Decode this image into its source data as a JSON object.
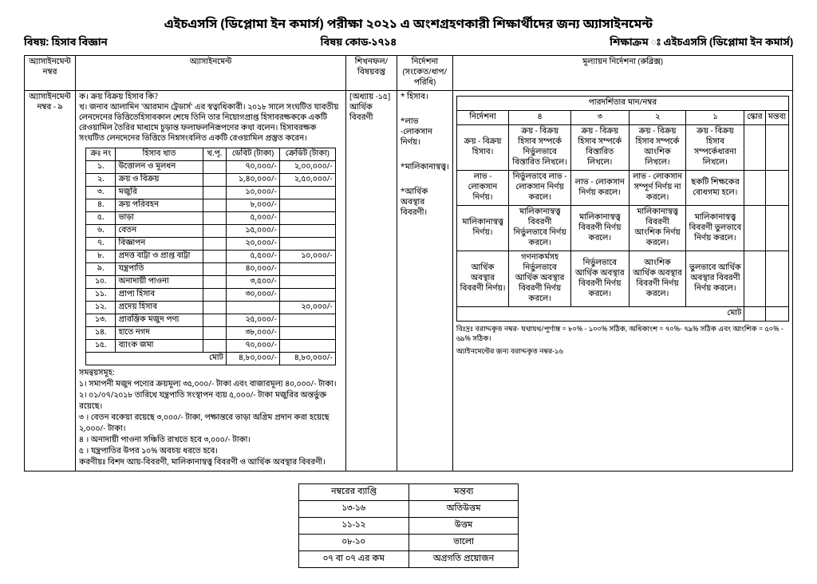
{
  "title": "এইচএসসি (ডিপ্লোমা ইন কমার্স) পরীক্ষা ২০২১ এ অংশগ্রহণকারী শিক্ষার্থীদের জন্য  অ্যাসাইনমেন্ট",
  "header": {
    "subject_label": "বিষয়: হিসাব বিজ্ঞান",
    "code_label": "বিষয় কোড-১৭১৪",
    "program_label": "শিক্ষাক্রম ঃ এইচএসসি (ডিপ্লোমা ইন কমার্স)"
  },
  "main_headers": {
    "asgn_no": "অ্যাসাইনমেন্ট নম্বর",
    "assignment": "অ্যাসাইনমেন্ট",
    "topic": "শিখনফল/ বিষয়বস্তু",
    "direction": "নির্দেশনা (সংকেত/ধাপ/ পরিধি)",
    "rubric": "মূল্যায়ন নির্দেশনা (রুব্রিক্স)"
  },
  "asgn_no_value": "অ্যাসাইনমেন্ট নম্বর - ৯",
  "assignment_text": {
    "k": "ক।  ক্রয় বিক্রয় হিসাব কি?",
    "kh": "খ।  জনাব আলামিন 'আরমান ট্রেডার্স' এর স্বত্বাধিকারী। ২০১৮ সালে সংঘটিত যাবতীয় লেনদেনের ভিত্তিতেহিসাবকাল শেষে তিনি তার নিয়োগপ্রাপ্ত হিসাবরক্ষককে একটি রেওয়ামিল তৈরির মাধ্যমে চূড়ান্ত ফলাফলনিরূপণের কথা বলেন। হিসাবরক্ষক সংঘটিত লেনদেনের ভিত্তিতে নিম্নসংবলিত একটি রেওয়ামিল প্রস্তুত করেন।"
  },
  "ledger": {
    "headers": [
      "ক্রঃ নং",
      "হিসাব খাত",
      "খ.পৃ.",
      "ডেবিট (টাকা)",
      "ক্রেডিট (টাকা)"
    ],
    "rows": [
      [
        "১.",
        "উত্তোলন ও মূলধন",
        "",
        "৭০,০০০/-",
        "২,০০,০০০/-"
      ],
      [
        "২.",
        "ক্রয় ও বিক্রয়",
        "",
        "১,৪০,০০০/-",
        "২,৫০,০০০/-"
      ],
      [
        "৩.",
        "মজুরি",
        "",
        "১০,০০০/-",
        ""
      ],
      [
        "৪.",
        "ক্রয় পরিবহন",
        "",
        "৮,০০০/-",
        ""
      ],
      [
        "৫.",
        "ভাড়া",
        "",
        "৫,০০০/-",
        ""
      ],
      [
        "৬.",
        "বেতন",
        "",
        "১৫,০০০/-",
        ""
      ],
      [
        "৭.",
        "বিজ্ঞাপন",
        "",
        "২০,০০০/-",
        ""
      ],
      [
        "৮.",
        "প্রদত্ত বাট্টা ও প্রাপ্ত বাট্টা",
        "",
        "৫,৫০০/-",
        "১০,০০০/-"
      ],
      [
        "৯.",
        "যন্ত্রপাতি",
        "",
        "৪০,০০০/-",
        ""
      ],
      [
        "১০.",
        "অনাদায়ী পাওনা",
        "",
        "৩,৫০০/-",
        ""
      ],
      [
        "১১.",
        "প্রাপ্য হিসাব",
        "",
        "৩০,০০০/-",
        ""
      ],
      [
        "১২.",
        "প্রদেয় হিসাব",
        "",
        "",
        "২০,০০০/-"
      ],
      [
        "১৩.",
        "প্রারম্ভিক মজুদ পণ্য",
        "",
        "২৫,০০০/-",
        ""
      ],
      [
        "১৪.",
        "হাতে নগদ",
        "",
        "৩৮,০০০/-",
        ""
      ],
      [
        "১৫.",
        "ব্যাংক জমা",
        "",
        "৭০,০০০/-",
        ""
      ]
    ],
    "total_label": "মোট",
    "total_debit": "৪,৮০,০০০/-",
    "total_credit": "৪,৮০,০০০/-"
  },
  "adjustments_title": "সমন্বয়সমূহ:",
  "adjustments": [
    "১। সমাপনী মজুদ পণ্যের ক্রয়মূল্য ৩৫,০০০/- টাকা এবং বাজারমূল্য ৪০,০০০/- টাকা।",
    "২। ০১/০৭/২০১৮ তারিখে যন্ত্রপাতি সংস্থাপন ব্যয় ৫,০০০/- টাকা মজুরির অন্তর্ভুক্ত রয়েছে।",
    "৩ । বেতন বকেয়া রয়েছে ৩,০০০/- টাকা, পক্ষান্তরে ভাড়া অগ্রিম প্রদান করা হয়েছে ২,০০০/- টাকা।",
    "৪ । অনাদায়ী পাওনা সঞ্চিতি রাখতে হবে ৩,০০০/- টাকা।",
    "৫ । যন্ত্রপাতির উপর ১০% অবচয় ধরতে হবে।"
  ],
  "required": "করণীয়ঃ বিশদ আয়-বিবরণী, মালিকানাস্বত্ত্ব বিবরণী ও আর্থিক অবস্থার বিবরণী।",
  "topic_value": "[অধ্যায় -১৫] আর্থিক বিবরণী",
  "directions": [
    "* হিসাব।",
    "*লাভ -লোকসান নির্ণয়।",
    "*মালিকানাস্বত্ত্ব।",
    "*আর্থিক অবস্থার বিবরণী।"
  ],
  "rubric_title": "পারদর্শিতার মান/নম্বর",
  "rubric_headers": [
    "নির্দেশনা",
    "৪",
    "৩",
    "২",
    "১",
    "স্কোর",
    "মন্তব্য"
  ],
  "rubric_rows": [
    {
      "c0": "ক্রয় - বিক্রয় হিসাব।",
      "c1": "ক্রয় - বিক্রয় হিসাব সম্পর্কে নির্ভুলভাবে বিস্তারিত লিখলে।",
      "c2": "ক্রয় - বিক্রয় হিসাব সম্পর্কে বিস্তারিত লিখলে।",
      "c3": "ক্রয় - বিক্রয় হিসাব সম্পর্কে আংশিক লিখলে।",
      "c4": "ক্রয় - বিক্রয় হিসাব সম্পর্কেধারনা লিখলে।"
    },
    {
      "c0": "লাভ - লোকসান নির্ণয়।",
      "c1": "নির্ভুলভাবে লাভ - লোকসান নির্ণয় করলে।",
      "c2": "লাভ - লোকসান নির্ণয় করলে।",
      "c3": "লাভ - লোকসান সম্পূর্ণ নির্ণয় না করলে।",
      "c4": "ছকটি শিক্ষকের বোধগম্য হলে।"
    },
    {
      "c0": "মালিকানাস্বত্ত্ব নির্ণয়।",
      "c1": "মালিকানাস্বত্ত্ব বিবরণী নির্ভুলভাবে নির্ণয় করলে।",
      "c2": "মালিকানাস্বত্ত্ব বিবরণী নির্ণয় করলে।",
      "c3": "মালিকানাস্বত্ত্ব বিবরণী আংশিক নির্ণয় করলে।",
      "c4": "মালিকানাস্বত্ত্ব বিবরণী ভুলভাবে নির্ণয় করলে।"
    },
    {
      "c0": "আর্থিক অবস্থার বিবরণী নির্ণয়।",
      "c1": "গণনাকর্মসহ নির্ভুলভাবে আর্থিক অবস্থার বিবরণী নির্ণয় করলে।",
      "c2": "নির্ভুলভাবে আর্থিক অবস্থার বিবরণী নির্ণয় করলে।",
      "c3": "আংশিক আর্থিক অবস্থার বিবরণী নির্ণয় করলে।",
      "c4": "ভুলভাবে আর্থিক অবস্থার বিবরণী নির্ণয় করলে।"
    }
  ],
  "rubric_total": "মোট",
  "rubric_footer1": "বিঃদ্রঃ বরাদ্দকৃত নম্বর- যথাযথ/পূর্ণাঙ্গ = ৮০% - ১০০% সঠিক, অধিকাংশ = ৭০%- ৭৯% সঠিক এবং আংশিক = ৫০% - ৬৯% সঠিক।",
  "rubric_footer2": "অ্যাইনমেন্টের জন্য বরাদ্দকৃত নম্বর-১৬",
  "bottom_table": {
    "headers": [
      "নম্বরের ব্যাপ্তি",
      "মন্তব্য"
    ],
    "rows": [
      [
        "১৩-১৬",
        "অতিউত্তম"
      ],
      [
        "১১-১২",
        "উত্তম"
      ],
      [
        "০৮-১০",
        "ভালো"
      ],
      [
        "০৭ বা ০৭ এর কম",
        "অগ্রগতি প্রয়োজন"
      ]
    ]
  }
}
